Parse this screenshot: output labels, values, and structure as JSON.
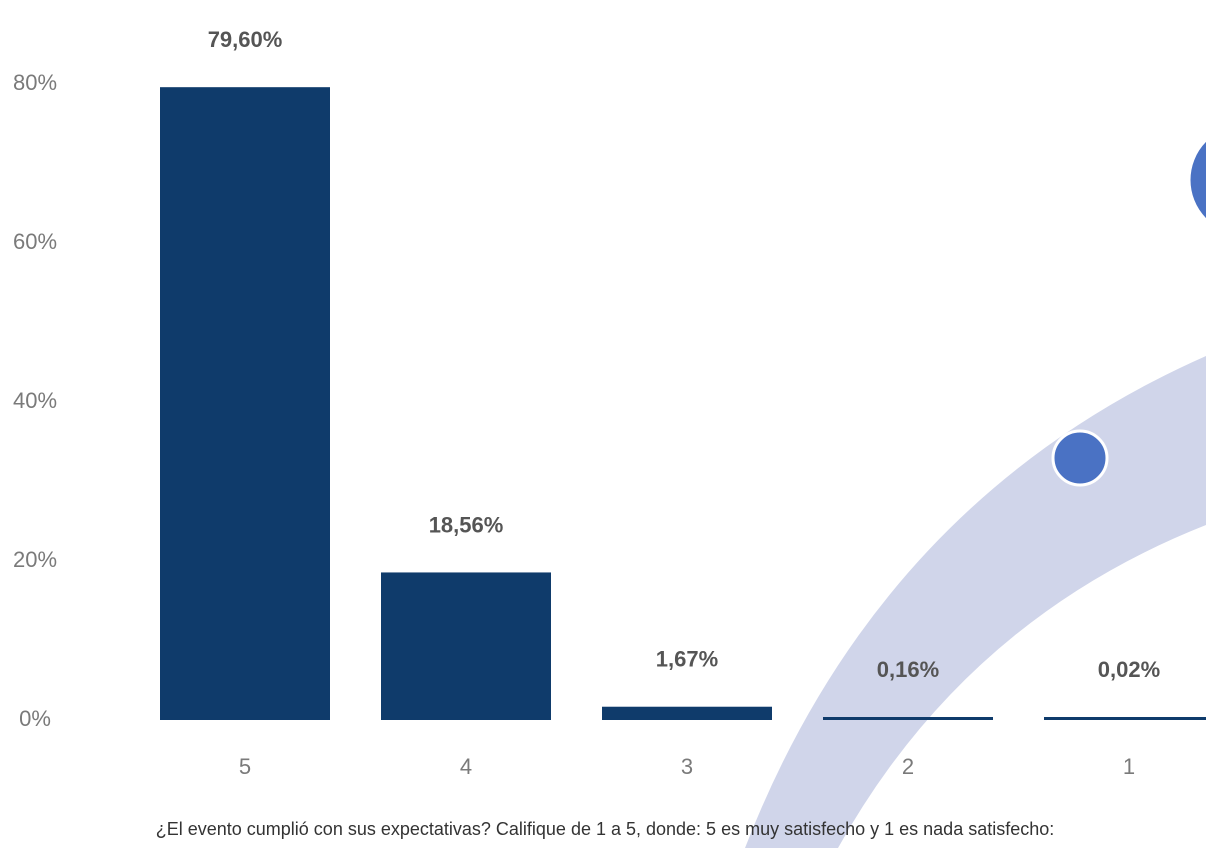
{
  "chart_data": {
    "type": "bar",
    "x_label": "¿El evento cumplió con sus expectativas? Califique de 1 a 5, donde: 5 es muy satisfecho y 1 es nada satisfecho:",
    "categories": [
      "5",
      "4",
      "3",
      "2",
      "1"
    ],
    "values": [
      79.6,
      18.56,
      1.67,
      0.16,
      0.02
    ],
    "value_labels": [
      "79,60%",
      "18,56%",
      "1,67%",
      "0,16%",
      "0,02%"
    ],
    "color": "#0f3b6b",
    "ylim": [
      0,
      80
    ],
    "yticks": [
      {
        "value": 0,
        "label": "0%"
      },
      {
        "value": 20,
        "label": "20%"
      },
      {
        "value": 40,
        "label": "40%"
      },
      {
        "value": 60,
        "label": "60%"
      },
      {
        "value": 80,
        "label": "80%"
      }
    ],
    "grid": false
  }
}
